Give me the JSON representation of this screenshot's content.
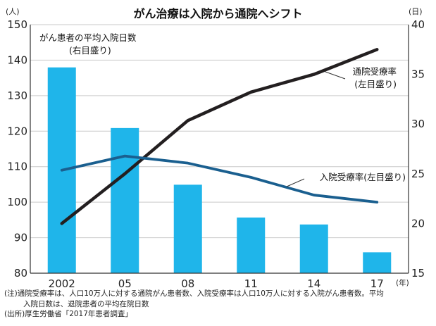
{
  "chart_data": {
    "type": "bar+line",
    "title": "がん治療は入院から通院へシフト",
    "categories": [
      "2002",
      "05",
      "08",
      "11",
      "14",
      "17"
    ],
    "x_unit": "(年)",
    "left_axis": {
      "unit": "(人)",
      "range": [
        80,
        150
      ],
      "ticks": [
        80,
        90,
        100,
        110,
        120,
        130,
        140,
        150
      ]
    },
    "right_axis": {
      "unit": "(日)",
      "range": [
        15,
        40
      ],
      "ticks": [
        15,
        20,
        25,
        30,
        35,
        40
      ]
    },
    "series": [
      {
        "name": "がん患者の平均入院日数",
        "sub_label": "(右目盛り)",
        "type": "bar",
        "axis": "right",
        "color": "#1fb5ea",
        "values": [
          35.7,
          29.6,
          23.9,
          20.6,
          19.9,
          17.1
        ]
      },
      {
        "name": "通院受療率",
        "sub_label": "(左目盛り)",
        "type": "line",
        "axis": "left",
        "color": "#231f20",
        "values": [
          94.0,
          108.0,
          123.0,
          131.0,
          136.0,
          143.0
        ]
      },
      {
        "name": "入院受療率",
        "sub_label": "(左目盛り)",
        "type": "line",
        "axis": "left",
        "color": "#1a5f8f",
        "values": [
          109.0,
          113.0,
          111.0,
          107.0,
          102.0,
          100.0
        ]
      }
    ]
  },
  "notes": {
    "note_line1": "(注)通院受療率は、人口10万人に対する通院がん患者数、入院受療率は人口10万人に対する入院がん患者数。平均",
    "note_line2": "入院日数は、退院患者の平均在院日数",
    "source": "(出所)厚生労働省「2017年患者調査」"
  }
}
